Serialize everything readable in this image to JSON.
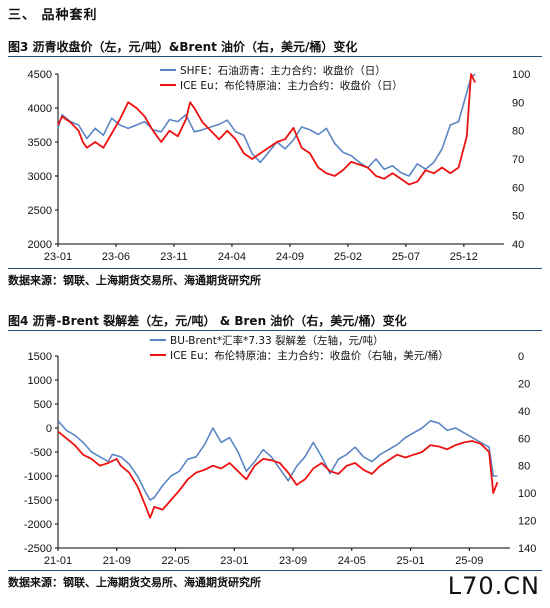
{
  "section": {
    "title": "三、  品种套利"
  },
  "figure3": {
    "title": "图3   沥青收盘价（左，元/吨）&Brent 油价（右，美元/桶）变化"
  },
  "figure4": {
    "title": "图4   沥青-Brent 裂解差（左，元/吨）  & Bren 油价（右，美元/桶）变化"
  },
  "source_note": "数据来源：钢联、上海期货交易所、海通期货研究所",
  "logo_text": "L70.CN",
  "colors": {
    "blue": "#5b86c5",
    "red": "#ee1111",
    "rule": "#1f4e79"
  },
  "chart_data": [
    {
      "type": "line",
      "x_ticks": [
        "23-01",
        "23-06",
        "23-11",
        "24-04",
        "24-09",
        "25-02",
        "25-07",
        "25-12"
      ],
      "y_left": {
        "ticks": [
          2000,
          2500,
          3000,
          3500,
          4000,
          4500
        ],
        "range": [
          2000,
          4500
        ]
      },
      "y_right": {
        "ticks": [
          40,
          50,
          60,
          70,
          80,
          90,
          100
        ],
        "range": [
          40,
          100
        ]
      },
      "series": [
        {
          "name": "SHFE：石油沥青：主力合约：收盘价（日）",
          "axis": "left",
          "color": "#5b86c5",
          "points": [
            [
              0,
              3700
            ],
            [
              1,
              3900
            ],
            [
              3,
              3800
            ],
            [
              5,
              3750
            ],
            [
              7,
              3550
            ],
            [
              9,
              3700
            ],
            [
              11,
              3600
            ],
            [
              13,
              3850
            ],
            [
              15,
              3750
            ],
            [
              17,
              3700
            ],
            [
              19,
              3750
            ],
            [
              21,
              3800
            ],
            [
              23,
              3680
            ],
            [
              25,
              3650
            ],
            [
              27,
              3830
            ],
            [
              29,
              3800
            ],
            [
              31,
              3900
            ],
            [
              33,
              3650
            ],
            [
              35,
              3680
            ],
            [
              37,
              3720
            ],
            [
              39,
              3760
            ],
            [
              41,
              3820
            ],
            [
              43,
              3650
            ],
            [
              45,
              3600
            ],
            [
              47,
              3330
            ],
            [
              49,
              3200
            ],
            [
              51,
              3350
            ],
            [
              53,
              3500
            ],
            [
              55,
              3400
            ],
            [
              57,
              3530
            ],
            [
              59,
              3720
            ],
            [
              61,
              3680
            ],
            [
              63,
              3610
            ],
            [
              65,
              3700
            ],
            [
              67,
              3480
            ],
            [
              69,
              3350
            ],
            [
              71,
              3300
            ],
            [
              73,
              3200
            ],
            [
              75,
              3120
            ],
            [
              77,
              3250
            ],
            [
              79,
              3100
            ],
            [
              81,
              3150
            ],
            [
              83,
              3050
            ],
            [
              85,
              3000
            ],
            [
              87,
              3180
            ],
            [
              89,
              3100
            ],
            [
              91,
              3200
            ],
            [
              93,
              3400
            ],
            [
              95,
              3750
            ],
            [
              97,
              3800
            ],
            [
              100,
              4450
            ],
            [
              101,
              4500
            ]
          ]
        },
        {
          "name": "ICE Eu：布伦特原油：主力合约：收盘价（日）",
          "axis": "right",
          "color": "#ee1111",
          "points": [
            [
              0,
              82
            ],
            [
              1,
              85
            ],
            [
              3,
              83
            ],
            [
              5,
              80
            ],
            [
              6,
              76
            ],
            [
              7,
              74
            ],
            [
              9,
              76
            ],
            [
              11,
              74
            ],
            [
              13,
              79
            ],
            [
              15,
              84
            ],
            [
              17,
              90
            ],
            [
              19,
              88
            ],
            [
              21,
              85
            ],
            [
              23,
              80
            ],
            [
              25,
              76
            ],
            [
              27,
              80
            ],
            [
              29,
              78
            ],
            [
              31,
              84
            ],
            [
              32,
              90
            ],
            [
              33,
              88
            ],
            [
              35,
              83
            ],
            [
              37,
              80
            ],
            [
              39,
              77
            ],
            [
              41,
              80
            ],
            [
              43,
              77
            ],
            [
              45,
              72
            ],
            [
              47,
              70
            ],
            [
              49,
              72
            ],
            [
              51,
              74
            ],
            [
              53,
              76
            ],
            [
              55,
              77
            ],
            [
              57,
              81
            ],
            [
              59,
              74
            ],
            [
              61,
              72
            ],
            [
              63,
              67
            ],
            [
              65,
              65
            ],
            [
              67,
              64
            ],
            [
              69,
              66
            ],
            [
              71,
              69
            ],
            [
              73,
              68
            ],
            [
              75,
              67
            ],
            [
              77,
              64
            ],
            [
              79,
              63
            ],
            [
              81,
              65
            ],
            [
              83,
              63
            ],
            [
              85,
              61
            ],
            [
              87,
              62
            ],
            [
              89,
              66
            ],
            [
              91,
              65
            ],
            [
              93,
              67
            ],
            [
              95,
              65
            ],
            [
              97,
              67
            ],
            [
              99,
              78
            ],
            [
              100,
              100
            ],
            [
              101,
              97
            ]
          ]
        }
      ]
    },
    {
      "type": "line",
      "x_ticks": [
        "21-01",
        "21-09",
        "22-05",
        "23-01",
        "23-09",
        "24-05",
        "25-01",
        "25-09"
      ],
      "y_left": {
        "ticks": [
          -2500,
          -2000,
          -1500,
          -1000,
          -500,
          0,
          500,
          1000,
          1500
        ],
        "range": [
          -2500,
          1500
        ]
      },
      "y_right": {
        "ticks": [
          0,
          20,
          40,
          60,
          80,
          100,
          120,
          140
        ],
        "range": [
          0,
          140
        ],
        "inverted": true
      },
      "series": [
        {
          "name": "BU-Brent*汇率*7.33 裂解差（左轴，元/吨）",
          "axis": "left",
          "color": "#5b86c5",
          "points": [
            [
              0,
              150
            ],
            [
              2,
              -50
            ],
            [
              4,
              -150
            ],
            [
              6,
              -300
            ],
            [
              8,
              -500
            ],
            [
              10,
              -600
            ],
            [
              12,
              -700
            ],
            [
              13,
              -550
            ],
            [
              15,
              -600
            ],
            [
              17,
              -750
            ],
            [
              19,
              -1000
            ],
            [
              21,
              -1350
            ],
            [
              22,
              -1500
            ],
            [
              23,
              -1450
            ],
            [
              25,
              -1200
            ],
            [
              27,
              -1000
            ],
            [
              29,
              -900
            ],
            [
              31,
              -650
            ],
            [
              33,
              -600
            ],
            [
              35,
              -350
            ],
            [
              37,
              0
            ],
            [
              39,
              -300
            ],
            [
              41,
              -200
            ],
            [
              43,
              -500
            ],
            [
              45,
              -900
            ],
            [
              47,
              -700
            ],
            [
              49,
              -450
            ],
            [
              51,
              -600
            ],
            [
              53,
              -850
            ],
            [
              55,
              -1100
            ],
            [
              57,
              -800
            ],
            [
              59,
              -600
            ],
            [
              61,
              -300
            ],
            [
              63,
              -600
            ],
            [
              65,
              -950
            ],
            [
              67,
              -650
            ],
            [
              69,
              -550
            ],
            [
              71,
              -400
            ],
            [
              73,
              -600
            ],
            [
              75,
              -700
            ],
            [
              77,
              -550
            ],
            [
              79,
              -450
            ],
            [
              81,
              -350
            ],
            [
              83,
              -200
            ],
            [
              85,
              -100
            ],
            [
              87,
              0
            ],
            [
              89,
              150
            ],
            [
              91,
              100
            ],
            [
              93,
              -50
            ],
            [
              95,
              0
            ],
            [
              97,
              -100
            ],
            [
              99,
              -200
            ],
            [
              101,
              -300
            ],
            [
              103,
              -400
            ],
            [
              104,
              -1000
            ],
            [
              105,
              -1000
            ]
          ]
        },
        {
          "name": "ICE Eu：布伦特原油：主力合约：收盘价（右轴，美元/桶）",
          "axis": "right",
          "color": "#ee1111",
          "points": [
            [
              0,
              55
            ],
            [
              2,
              60
            ],
            [
              4,
              65
            ],
            [
              6,
              72
            ],
            [
              8,
              75
            ],
            [
              10,
              80
            ],
            [
              12,
              78
            ],
            [
              14,
              75
            ],
            [
              15,
              80
            ],
            [
              17,
              85
            ],
            [
              19,
              95
            ],
            [
              21,
              110
            ],
            [
              22,
              118
            ],
            [
              23,
              110
            ],
            [
              25,
              112
            ],
            [
              27,
              105
            ],
            [
              29,
              98
            ],
            [
              31,
              90
            ],
            [
              33,
              85
            ],
            [
              35,
              83
            ],
            [
              37,
              80
            ],
            [
              39,
              82
            ],
            [
              41,
              78
            ],
            [
              43,
              84
            ],
            [
              45,
              90
            ],
            [
              47,
              80
            ],
            [
              49,
              75
            ],
            [
              51,
              76
            ],
            [
              53,
              78
            ],
            [
              55,
              85
            ],
            [
              57,
              94
            ],
            [
              59,
              90
            ],
            [
              61,
              82
            ],
            [
              63,
              78
            ],
            [
              65,
              84
            ],
            [
              67,
              86
            ],
            [
              69,
              80
            ],
            [
              71,
              78
            ],
            [
              73,
              83
            ],
            [
              75,
              86
            ],
            [
              77,
              80
            ],
            [
              79,
              76
            ],
            [
              81,
              72
            ],
            [
              83,
              74
            ],
            [
              85,
              72
            ],
            [
              87,
              70
            ],
            [
              89,
              65
            ],
            [
              91,
              66
            ],
            [
              93,
              68
            ],
            [
              95,
              65
            ],
            [
              97,
              63
            ],
            [
              99,
              62
            ],
            [
              101,
              64
            ],
            [
              103,
              70
            ],
            [
              104,
              100
            ],
            [
              105,
              92
            ]
          ]
        }
      ]
    }
  ]
}
